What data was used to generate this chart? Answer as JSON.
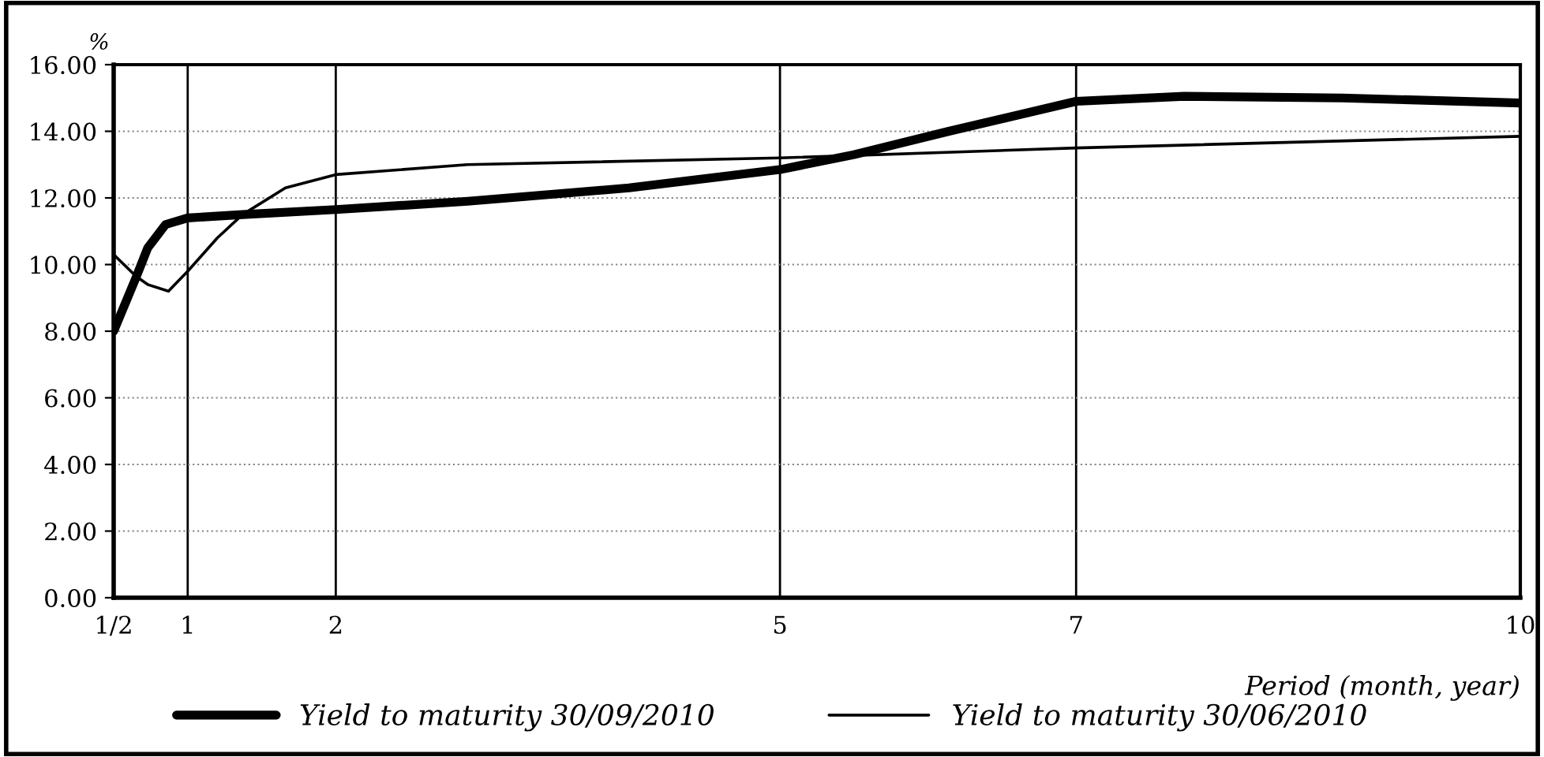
{
  "chart_data": {
    "type": "line",
    "ylabel": "%",
    "xlabel": "Period (month, year)",
    "xlim": [
      0.5,
      10
    ],
    "xticks": [
      {
        "value": 0.5,
        "label": "1/2"
      },
      1,
      2,
      5,
      7,
      10
    ],
    "ylim": [
      0,
      16
    ],
    "yticks": [
      {
        "value": 0,
        "label": "0.00"
      },
      {
        "value": 2,
        "label": "2.00"
      },
      {
        "value": 4,
        "label": "4.00"
      },
      {
        "value": 6,
        "label": "6.00"
      },
      {
        "value": 8,
        "label": "8.00"
      },
      {
        "value": 10,
        "label": "10.00"
      },
      {
        "value": 12,
        "label": "12.00"
      },
      {
        "value": 14,
        "label": "14.00"
      },
      {
        "value": 16,
        "label": "16.00"
      }
    ],
    "grid": true,
    "legend": "bottom",
    "marker": "none",
    "series": [
      {
        "name": "Yield to maturity 30/09/2010",
        "color": "#000000",
        "x": [
          0.5,
          0.65,
          0.73,
          0.85,
          1,
          1.37,
          2,
          2.89,
          3.98,
          5,
          5.5,
          6.14,
          7,
          7.73,
          8.8,
          10
        ],
        "values": [
          8.0,
          9.6,
          10.5,
          11.2,
          11.4,
          11.5,
          11.65,
          11.9,
          12.3,
          12.85,
          13.3,
          14.0,
          14.9,
          15.05,
          15.0,
          14.85
        ]
      },
      {
        "name": "Yield to maturity 30/06/2010",
        "color": "#000000",
        "x": [
          0.5,
          0.65,
          0.73,
          0.87,
          1,
          1.2,
          1.37,
          1.66,
          2,
          2.89,
          5,
          7,
          10
        ],
        "values": [
          10.3,
          9.65,
          9.4,
          9.2,
          9.8,
          10.8,
          11.5,
          12.3,
          12.7,
          13.0,
          13.2,
          13.5,
          13.85
        ]
      }
    ]
  }
}
